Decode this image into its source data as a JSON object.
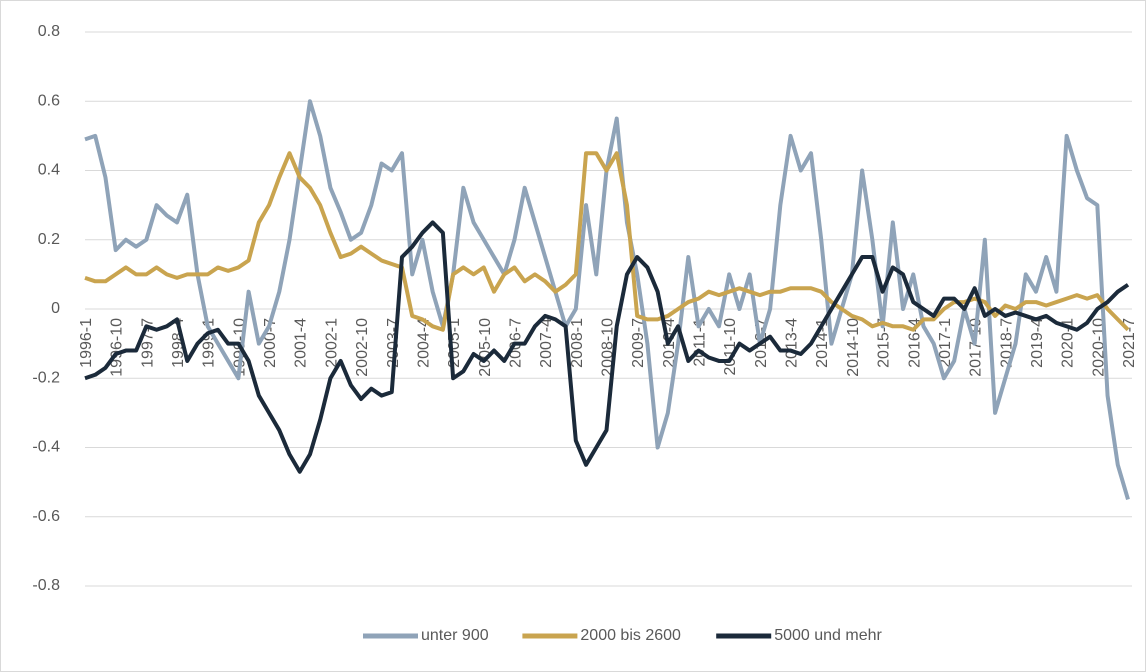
{
  "chart_data": {
    "type": "line",
    "categories": [
      "1996-1",
      null,
      null,
      "1996-10",
      null,
      null,
      "1997-7",
      null,
      null,
      "1998-4",
      null,
      null,
      "1999-1",
      null,
      null,
      "1999-10",
      null,
      null,
      "2000-7",
      null,
      null,
      "2001-4",
      null,
      null,
      "2002-1",
      null,
      null,
      "2002-10",
      null,
      null,
      "2003-7",
      null,
      null,
      "2004-4",
      null,
      null,
      "2005-1",
      null,
      null,
      "2005-10",
      null,
      null,
      "2006-7",
      null,
      null,
      "2007-4",
      null,
      null,
      "2008-1",
      null,
      null,
      "2008-10",
      null,
      null,
      "2009-7",
      null,
      null,
      "2010-4",
      null,
      null,
      "2011-1",
      null,
      null,
      "2011-10",
      null,
      null,
      "2012-7",
      null,
      null,
      "2013-4",
      null,
      null,
      "2014-1",
      null,
      null,
      "2014-10",
      null,
      null,
      "2015-7",
      null,
      null,
      "2016-4",
      null,
      null,
      "2017-1",
      null,
      null,
      "2017-10",
      null,
      null,
      "2018-7",
      null,
      null,
      "2019-4",
      null,
      null,
      "2020-1",
      null,
      null,
      "2020-10",
      null,
      null,
      "2021-7"
    ],
    "series": [
      {
        "name": "unter 900",
        "color": "#8fa3b8",
        "values": [
          0.49,
          0.5,
          0.38,
          0.17,
          0.2,
          0.18,
          0.2,
          0.3,
          0.27,
          0.25,
          0.33,
          0.1,
          -0.05,
          -0.1,
          -0.15,
          -0.2,
          0.05,
          -0.1,
          -0.05,
          0.05,
          0.2,
          0.4,
          0.6,
          0.5,
          0.35,
          0.28,
          0.2,
          0.22,
          0.3,
          0.42,
          0.4,
          0.45,
          0.1,
          0.2,
          0.05,
          -0.05,
          0.1,
          0.35,
          0.25,
          0.2,
          0.15,
          0.1,
          0.2,
          0.35,
          0.25,
          0.15,
          0.05,
          -0.05,
          0.0,
          0.3,
          0.1,
          0.4,
          0.55,
          0.25,
          0.1,
          -0.1,
          -0.4,
          -0.3,
          -0.1,
          0.15,
          -0.05,
          0.0,
          -0.05,
          0.1,
          0.0,
          0.1,
          -0.1,
          0.0,
          0.3,
          0.5,
          0.4,
          0.45,
          0.2,
          -0.1,
          0.0,
          0.1,
          0.4,
          0.2,
          -0.05,
          0.25,
          0.0,
          0.1,
          -0.05,
          -0.1,
          -0.2,
          -0.15,
          0.0,
          -0.1,
          0.2,
          -0.3,
          -0.2,
          -0.1,
          0.1,
          0.05,
          0.15,
          0.05,
          0.5,
          0.4,
          0.32,
          0.3,
          -0.25,
          -0.45,
          -0.55
        ]
      },
      {
        "name": "2000 bis 2600",
        "color": "#c9a44f",
        "values": [
          0.09,
          0.08,
          0.08,
          0.1,
          0.12,
          0.1,
          0.1,
          0.12,
          0.1,
          0.09,
          0.1,
          0.1,
          0.1,
          0.12,
          0.11,
          0.12,
          0.14,
          0.25,
          0.3,
          0.38,
          0.45,
          0.38,
          0.35,
          0.3,
          0.22,
          0.15,
          0.16,
          0.18,
          0.16,
          0.14,
          0.13,
          0.12,
          -0.02,
          -0.03,
          -0.05,
          -0.06,
          0.1,
          0.12,
          0.1,
          0.12,
          0.05,
          0.1,
          0.12,
          0.08,
          0.1,
          0.08,
          0.05,
          0.07,
          0.1,
          0.45,
          0.45,
          0.4,
          0.45,
          0.3,
          -0.02,
          -0.03,
          -0.03,
          -0.02,
          0.0,
          0.02,
          0.03,
          0.05,
          0.04,
          0.05,
          0.06,
          0.05,
          0.04,
          0.05,
          0.05,
          0.06,
          0.06,
          0.06,
          0.05,
          0.02,
          0.0,
          -0.02,
          -0.03,
          -0.05,
          -0.04,
          -0.05,
          -0.05,
          -0.06,
          -0.03,
          -0.03,
          0.0,
          0.02,
          0.02,
          0.03,
          0.02,
          -0.02,
          0.01,
          0.0,
          0.02,
          0.02,
          0.01,
          0.02,
          0.03,
          0.04,
          0.03,
          0.04,
          0.0,
          -0.03,
          -0.06
        ]
      },
      {
        "name": "5000 und mehr",
        "color": "#1b2a3a",
        "values": [
          -0.2,
          -0.19,
          -0.17,
          -0.13,
          -0.12,
          -0.12,
          -0.05,
          -0.06,
          -0.05,
          -0.03,
          -0.15,
          -0.1,
          -0.07,
          -0.06,
          -0.1,
          -0.1,
          -0.15,
          -0.25,
          -0.3,
          -0.35,
          -0.42,
          -0.47,
          -0.42,
          -0.32,
          -0.2,
          -0.15,
          -0.22,
          -0.26,
          -0.23,
          -0.25,
          -0.24,
          0.15,
          0.18,
          0.22,
          0.25,
          0.22,
          -0.2,
          -0.18,
          -0.13,
          -0.15,
          -0.12,
          -0.15,
          -0.1,
          -0.1,
          -0.05,
          -0.02,
          -0.03,
          -0.05,
          -0.38,
          -0.45,
          -0.4,
          -0.35,
          -0.05,
          0.1,
          0.15,
          0.12,
          0.05,
          -0.1,
          -0.05,
          -0.15,
          -0.12,
          -0.14,
          -0.15,
          -0.15,
          -0.1,
          -0.12,
          -0.1,
          -0.08,
          -0.12,
          -0.12,
          -0.13,
          -0.1,
          -0.05,
          0.0,
          0.05,
          0.1,
          0.15,
          0.15,
          0.05,
          0.12,
          0.1,
          0.02,
          0.0,
          -0.02,
          0.03,
          0.03,
          0.0,
          0.06,
          -0.02,
          0.0,
          -0.02,
          -0.01,
          -0.02,
          -0.03,
          -0.02,
          -0.04,
          -0.05,
          -0.06,
          -0.04,
          0.0,
          0.02,
          0.05,
          0.07
        ]
      }
    ],
    "ylim": [
      -0.8,
      0.8
    ],
    "yticks": [
      -0.8,
      -0.6,
      -0.4,
      -0.2,
      0,
      0.2,
      0.4,
      0.6,
      0.8
    ],
    "grid": true,
    "legend": "bottom"
  }
}
